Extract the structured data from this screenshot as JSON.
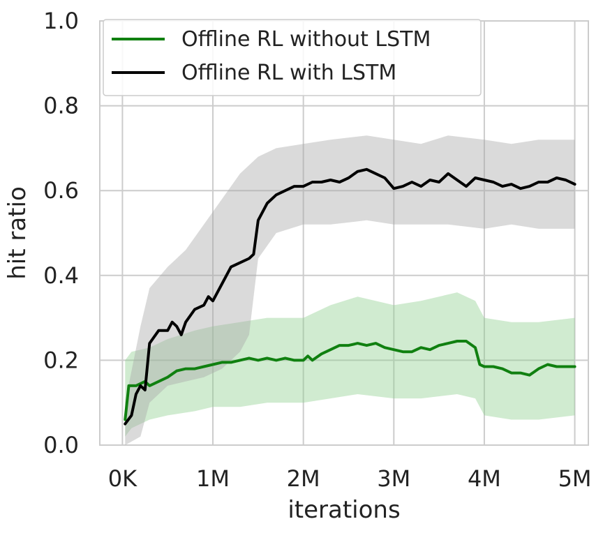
{
  "chart_data": {
    "type": "line",
    "xlabel": "iterations",
    "ylabel": "hit ratio",
    "xlim": [
      -0.25,
      5.15
    ],
    "ylim": [
      0.0,
      1.0
    ],
    "x_unit": "M iterations",
    "xticks": [
      0,
      1,
      2,
      3,
      4,
      5
    ],
    "xtick_labels": [
      "0K",
      "1M",
      "2M",
      "3M",
      "4M",
      "5M"
    ],
    "yticks": [
      0.0,
      0.2,
      0.4,
      0.6,
      0.8,
      1.0
    ],
    "ytick_labels": [
      "0.0",
      "0.2",
      "0.4",
      "0.6",
      "0.8",
      "1.0"
    ],
    "grid": true,
    "legend_position": "top-left",
    "series": [
      {
        "name": "Offline RL without LSTM",
        "color": "#108010",
        "band_color": "#90cf90",
        "points": [
          [
            0.03,
            0.06
          ],
          [
            0.05,
            0.1
          ],
          [
            0.07,
            0.14
          ],
          [
            0.15,
            0.14
          ],
          [
            0.25,
            0.15
          ],
          [
            0.3,
            0.14
          ],
          [
            0.4,
            0.15
          ],
          [
            0.5,
            0.16
          ],
          [
            0.6,
            0.175
          ],
          [
            0.7,
            0.18
          ],
          [
            0.8,
            0.18
          ],
          [
            0.9,
            0.185
          ],
          [
            1.0,
            0.19
          ],
          [
            1.1,
            0.195
          ],
          [
            1.2,
            0.195
          ],
          [
            1.3,
            0.2
          ],
          [
            1.4,
            0.205
          ],
          [
            1.5,
            0.2
          ],
          [
            1.6,
            0.205
          ],
          [
            1.7,
            0.2
          ],
          [
            1.8,
            0.205
          ],
          [
            1.9,
            0.2
          ],
          [
            2.0,
            0.2
          ],
          [
            2.05,
            0.21
          ],
          [
            2.1,
            0.2
          ],
          [
            2.2,
            0.215
          ],
          [
            2.3,
            0.225
          ],
          [
            2.4,
            0.235
          ],
          [
            2.5,
            0.235
          ],
          [
            2.6,
            0.24
          ],
          [
            2.7,
            0.235
          ],
          [
            2.8,
            0.24
          ],
          [
            2.9,
            0.23
          ],
          [
            3.0,
            0.225
          ],
          [
            3.1,
            0.22
          ],
          [
            3.2,
            0.22
          ],
          [
            3.3,
            0.23
          ],
          [
            3.4,
            0.225
          ],
          [
            3.5,
            0.235
          ],
          [
            3.6,
            0.24
          ],
          [
            3.7,
            0.245
          ],
          [
            3.8,
            0.245
          ],
          [
            3.9,
            0.23
          ],
          [
            3.95,
            0.19
          ],
          [
            4.0,
            0.185
          ],
          [
            4.1,
            0.185
          ],
          [
            4.2,
            0.18
          ],
          [
            4.3,
            0.17
          ],
          [
            4.4,
            0.17
          ],
          [
            4.5,
            0.165
          ],
          [
            4.6,
            0.18
          ],
          [
            4.7,
            0.19
          ],
          [
            4.8,
            0.185
          ],
          [
            4.9,
            0.185
          ],
          [
            5.0,
            0.185
          ]
        ],
        "band_upper": [
          [
            0.03,
            0.2
          ],
          [
            0.1,
            0.22
          ],
          [
            0.3,
            0.23
          ],
          [
            0.5,
            0.25
          ],
          [
            0.8,
            0.27
          ],
          [
            1.0,
            0.28
          ],
          [
            1.3,
            0.29
          ],
          [
            1.6,
            0.3
          ],
          [
            2.0,
            0.3
          ],
          [
            2.3,
            0.33
          ],
          [
            2.6,
            0.35
          ],
          [
            3.0,
            0.33
          ],
          [
            3.3,
            0.34
          ],
          [
            3.7,
            0.36
          ],
          [
            3.9,
            0.34
          ],
          [
            4.0,
            0.3
          ],
          [
            4.3,
            0.29
          ],
          [
            4.6,
            0.29
          ],
          [
            5.0,
            0.3
          ]
        ],
        "band_lower": [
          [
            0.03,
            0.02
          ],
          [
            0.1,
            0.04
          ],
          [
            0.3,
            0.06
          ],
          [
            0.5,
            0.07
          ],
          [
            0.8,
            0.08
          ],
          [
            1.0,
            0.09
          ],
          [
            1.3,
            0.09
          ],
          [
            1.6,
            0.1
          ],
          [
            2.0,
            0.1
          ],
          [
            2.3,
            0.11
          ],
          [
            2.6,
            0.12
          ],
          [
            3.0,
            0.11
          ],
          [
            3.3,
            0.11
          ],
          [
            3.7,
            0.12
          ],
          [
            3.9,
            0.11
          ],
          [
            4.0,
            0.07
          ],
          [
            4.3,
            0.06
          ],
          [
            4.6,
            0.06
          ],
          [
            5.0,
            0.07
          ]
        ]
      },
      {
        "name": "Offline RL with LSTM",
        "color": "#000000",
        "band_color": "#a8a8a8",
        "points": [
          [
            0.03,
            0.05
          ],
          [
            0.1,
            0.07
          ],
          [
            0.15,
            0.12
          ],
          [
            0.2,
            0.14
          ],
          [
            0.25,
            0.13
          ],
          [
            0.3,
            0.24
          ],
          [
            0.4,
            0.27
          ],
          [
            0.5,
            0.27
          ],
          [
            0.55,
            0.29
          ],
          [
            0.6,
            0.28
          ],
          [
            0.65,
            0.26
          ],
          [
            0.7,
            0.29
          ],
          [
            0.8,
            0.32
          ],
          [
            0.9,
            0.33
          ],
          [
            0.95,
            0.35
          ],
          [
            1.0,
            0.34
          ],
          [
            1.1,
            0.38
          ],
          [
            1.2,
            0.42
          ],
          [
            1.3,
            0.43
          ],
          [
            1.4,
            0.44
          ],
          [
            1.45,
            0.45
          ],
          [
            1.5,
            0.53
          ],
          [
            1.6,
            0.57
          ],
          [
            1.7,
            0.59
          ],
          [
            1.8,
            0.6
          ],
          [
            1.9,
            0.61
          ],
          [
            2.0,
            0.61
          ],
          [
            2.1,
            0.62
          ],
          [
            2.2,
            0.62
          ],
          [
            2.3,
            0.625
          ],
          [
            2.4,
            0.62
          ],
          [
            2.5,
            0.63
          ],
          [
            2.6,
            0.645
          ],
          [
            2.7,
            0.65
          ],
          [
            2.8,
            0.64
          ],
          [
            2.9,
            0.63
          ],
          [
            3.0,
            0.605
          ],
          [
            3.1,
            0.61
          ],
          [
            3.2,
            0.62
          ],
          [
            3.3,
            0.61
          ],
          [
            3.4,
            0.625
          ],
          [
            3.5,
            0.62
          ],
          [
            3.6,
            0.64
          ],
          [
            3.7,
            0.625
          ],
          [
            3.8,
            0.61
          ],
          [
            3.9,
            0.63
          ],
          [
            4.0,
            0.625
          ],
          [
            4.1,
            0.62
          ],
          [
            4.2,
            0.61
          ],
          [
            4.3,
            0.615
          ],
          [
            4.4,
            0.605
          ],
          [
            4.5,
            0.61
          ],
          [
            4.6,
            0.62
          ],
          [
            4.7,
            0.62
          ],
          [
            4.8,
            0.63
          ],
          [
            4.9,
            0.625
          ],
          [
            5.0,
            0.615
          ]
        ],
        "band_upper": [
          [
            0.03,
            0.1
          ],
          [
            0.2,
            0.28
          ],
          [
            0.3,
            0.37
          ],
          [
            0.5,
            0.42
          ],
          [
            0.7,
            0.46
          ],
          [
            0.9,
            0.52
          ],
          [
            1.1,
            0.58
          ],
          [
            1.3,
            0.64
          ],
          [
            1.5,
            0.68
          ],
          [
            1.7,
            0.7
          ],
          [
            2.0,
            0.71
          ],
          [
            2.3,
            0.72
          ],
          [
            2.7,
            0.73
          ],
          [
            3.0,
            0.72
          ],
          [
            3.3,
            0.71
          ],
          [
            3.6,
            0.73
          ],
          [
            4.0,
            0.72
          ],
          [
            4.3,
            0.71
          ],
          [
            4.6,
            0.72
          ],
          [
            5.0,
            0.72
          ]
        ],
        "band_lower": [
          [
            0.03,
            0.0
          ],
          [
            0.2,
            0.02
          ],
          [
            0.3,
            0.1
          ],
          [
            0.5,
            0.14
          ],
          [
            0.7,
            0.15
          ],
          [
            0.9,
            0.16
          ],
          [
            1.1,
            0.18
          ],
          [
            1.3,
            0.22
          ],
          [
            1.4,
            0.26
          ],
          [
            1.5,
            0.44
          ],
          [
            1.7,
            0.5
          ],
          [
            2.0,
            0.52
          ],
          [
            2.3,
            0.52
          ],
          [
            2.7,
            0.53
          ],
          [
            3.0,
            0.52
          ],
          [
            3.3,
            0.52
          ],
          [
            3.6,
            0.52
          ],
          [
            4.0,
            0.51
          ],
          [
            4.3,
            0.52
          ],
          [
            4.6,
            0.51
          ],
          [
            5.0,
            0.51
          ]
        ]
      }
    ]
  }
}
